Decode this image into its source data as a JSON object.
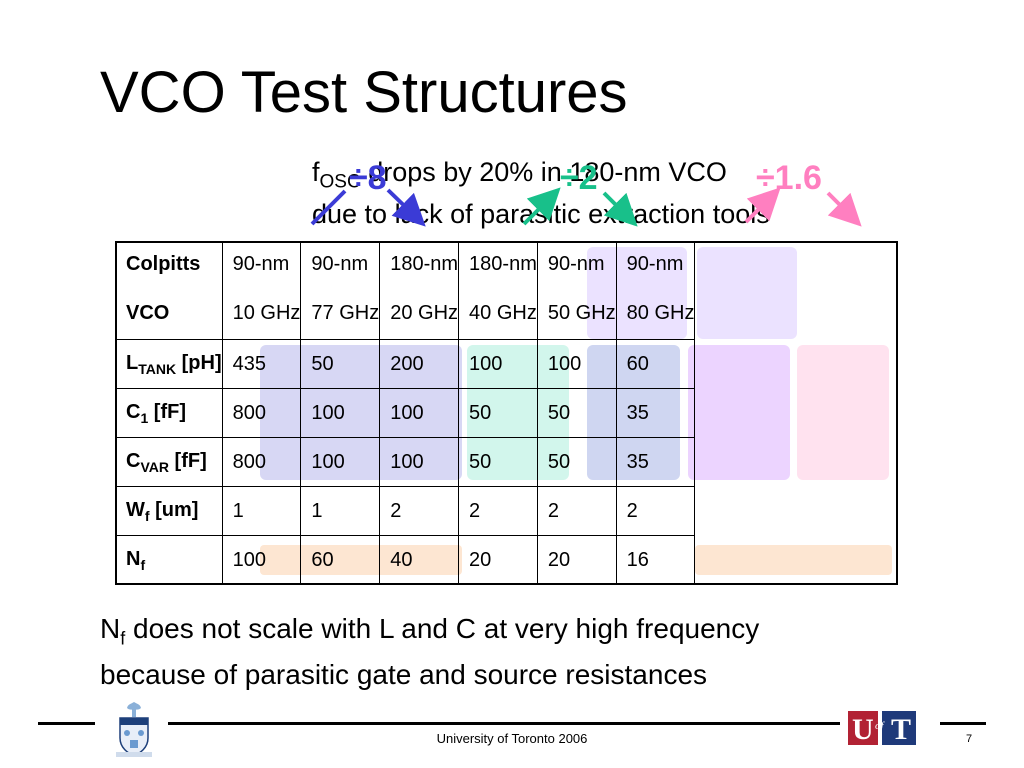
{
  "title": "VCO Test Structures",
  "note": {
    "f": "f",
    "sub": "OSC",
    "line1_rest": " drops by 20% in 180-nm VCO",
    "line2": "due to lack of parasitic extraction tools"
  },
  "ratios": [
    "÷8",
    "÷2",
    "÷1.6"
  ],
  "colors": {
    "ratio_8": "#3b3bd6",
    "ratio_2": "#18c08a",
    "ratio_16": "#ff7fc0",
    "fill_blue": "#d7d7f4",
    "fill_green": "#d2f6ec",
    "fill_lilac": "#ebe2ff",
    "fill_periwinkle": "#cfd6f1",
    "fill_violet": "#ecd4ff",
    "fill_pink": "#ffe2ef",
    "fill_orange": "#fde6d2"
  },
  "table": {
    "corner": [
      "Colpitts",
      "VCO"
    ],
    "columns": [
      {
        "node": "90-nm",
        "freq": "10 GHz"
      },
      {
        "node": "90-nm",
        "freq": "77 GHz"
      },
      {
        "node": "180-nm",
        "freq": "20 GHz"
      },
      {
        "node": "180-nm",
        "freq": "40 GHz"
      },
      {
        "node": "90-nm",
        "freq": "50 GHz"
      },
      {
        "node": "90-nm",
        "freq": "80 GHz"
      }
    ],
    "rows": [
      {
        "label": "L",
        "sub": "TANK",
        "unit": " [pH]",
        "values": [
          "435",
          "50",
          "200",
          "100",
          "100",
          "60"
        ]
      },
      {
        "label": "C",
        "sub": "1",
        "unit": " [fF]",
        "values": [
          "800",
          "100",
          "100",
          "50",
          "50",
          "35"
        ]
      },
      {
        "label": "C",
        "sub": "VAR",
        "unit": " [fF]",
        "values": [
          "800",
          "100",
          "100",
          "50",
          "50",
          "35"
        ]
      },
      {
        "label": "W",
        "sub": "f",
        "unit": " [um]",
        "values": [
          "1",
          "1",
          "2",
          "2",
          "2",
          "2"
        ]
      },
      {
        "label": "N",
        "sub": "f",
        "unit": "",
        "values": [
          "100",
          "60",
          "40",
          "20",
          "20",
          "16"
        ]
      }
    ]
  },
  "bottom": {
    "line1_n": "N",
    "line1_sub": "f",
    "line1_rest": " does not scale with L and C at very high frequency",
    "line2": "because of parasitic gate and source resistances"
  },
  "footer": {
    "center_text": "University of Toronto 2006",
    "page_number": "7",
    "logo_text": "UofT"
  }
}
